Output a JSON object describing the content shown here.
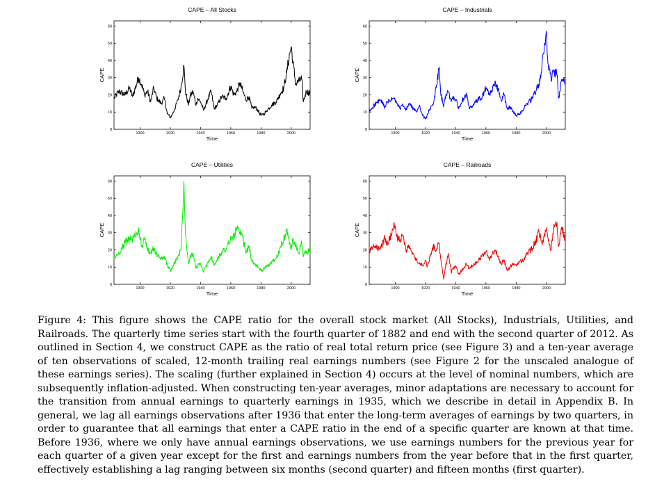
{
  "figure": {
    "caption": "Figure 4: This figure shows the CAPE ratio for the overall stock market (All Stocks), Industrials, Utilities, and Railroads. The quarterly time series start with the fourth quarter of 1882 and end with the second quarter of 2012. As outlined in Section 4, we construct CAPE as the ratio of real total return price (see Figure 3) and a ten-year average of ten observations of scaled, 12-month trailing real earnings numbers (see Figure 2 for the unscaled analogue of these earnings series). The scaling (further explained in Section 4) occurs at the level of nominal numbers, which are subsequently inflation-adjusted. When constructing ten-year averages, minor adaptations are necessary to account for the transition from annual earnings to quarterly earnings in 1935, which we describe in detail in Appendix B. In general, we lag all earnings observations after 1936 that enter the long-term averages of earnings by two quarters, in order to guarantee that all earnings that enter a CAPE ratio in the end of a specific quarter are known at that time. Before 1936, where we only have annual earnings observations, we use earnings numbers for the previous year for each quarter of a given year except for the first and earnings numbers from the year before that in the first quarter, effectively establishing a lag ranging between six months (second quarter) and fifteen months (first quarter)."
  },
  "chart_data": [
    {
      "type": "line",
      "title": "CAPE – All Stocks",
      "xlabel": "Time",
      "ylabel": "CAPE",
      "color": "#000000",
      "xlim": [
        1882.75,
        2012.5
      ],
      "ylim": [
        0,
        63
      ],
      "xticks": [
        "1900",
        "1920",
        "1940",
        "1960",
        "1980",
        "2000"
      ],
      "yticks": [
        "0",
        "10",
        "20",
        "30",
        "40",
        "50",
        "60"
      ],
      "x": [
        1882.75,
        1886,
        1890,
        1893,
        1895,
        1899,
        1901,
        1903,
        1905,
        1907,
        1909,
        1911,
        1914,
        1916,
        1918,
        1920,
        1921,
        1923,
        1925,
        1927,
        1929,
        1930,
        1932,
        1933,
        1935,
        1937,
        1938,
        1940,
        1942,
        1945,
        1947,
        1949,
        1951,
        1954,
        1957,
        1960,
        1962,
        1964,
        1966,
        1968,
        1970,
        1972,
        1974,
        1976,
        1978,
        1980,
        1982,
        1985,
        1987,
        1990,
        1993,
        1995,
        1997,
        1999,
        2000,
        2001,
        2003,
        2005,
        2007,
        2008,
        2009,
        2010,
        2012.5
      ],
      "values": [
        18,
        22,
        20,
        24,
        19,
        30,
        26,
        20,
        22,
        16,
        24,
        18,
        15,
        18,
        9,
        7,
        8,
        12,
        17,
        24,
        37,
        22,
        14,
        19,
        22,
        14,
        18,
        16,
        11,
        18,
        22,
        12,
        14,
        19,
        18,
        25,
        20,
        22,
        27,
        22,
        17,
        19,
        12,
        13,
        11,
        8,
        9,
        12,
        14,
        16,
        21,
        24,
        33,
        44,
        48,
        40,
        26,
        28,
        29,
        16,
        19,
        22,
        21
      ]
    },
    {
      "type": "line",
      "title": "CAPE – Industrials",
      "xlabel": "Time",
      "ylabel": "CAPE",
      "color": "#0000ff",
      "xlim": [
        1882.75,
        2012.5
      ],
      "ylim": [
        0,
        63
      ],
      "xticks": [
        "1900",
        "1920",
        "1940",
        "1960",
        "1980",
        "2000"
      ],
      "yticks": [
        "0",
        "10",
        "20",
        "30",
        "40",
        "50",
        "60"
      ],
      "x": [
        1882.75,
        1886,
        1890,
        1893,
        1895,
        1899,
        1901,
        1903,
        1905,
        1907,
        1909,
        1911,
        1914,
        1916,
        1918,
        1920,
        1921,
        1923,
        1925,
        1927,
        1929,
        1930,
        1932,
        1933,
        1935,
        1937,
        1938,
        1940,
        1942,
        1945,
        1947,
        1949,
        1951,
        1954,
        1957,
        1960,
        1962,
        1964,
        1966,
        1968,
        1970,
        1972,
        1974,
        1976,
        1978,
        1980,
        1982,
        1985,
        1987,
        1990,
        1993,
        1995,
        1997,
        1999,
        2000,
        2001,
        2003,
        2005,
        2007,
        2008,
        2009,
        2010,
        2012.5
      ],
      "values": [
        10,
        14,
        17,
        13,
        16,
        18,
        15,
        12,
        14,
        11,
        15,
        13,
        10,
        14,
        8,
        6,
        8,
        12,
        14,
        24,
        36,
        21,
        13,
        19,
        22,
        16,
        19,
        17,
        12,
        18,
        21,
        12,
        13,
        17,
        18,
        24,
        20,
        22,
        28,
        23,
        17,
        20,
        12,
        13,
        10,
        8,
        9,
        12,
        15,
        17,
        22,
        26,
        36,
        50,
        57,
        38,
        30,
        33,
        32,
        18,
        22,
        29,
        28
      ]
    },
    {
      "type": "line",
      "title": "CAPE – Utilities",
      "xlabel": "Time",
      "ylabel": "CAPE",
      "color": "#00ee00",
      "xlim": [
        1882.75,
        2012.5
      ],
      "ylim": [
        0,
        63
      ],
      "xticks": [
        "1900",
        "1920",
        "1940",
        "1960",
        "1980",
        "2000"
      ],
      "yticks": [
        "0",
        "10",
        "20",
        "30",
        "40",
        "50",
        "60"
      ],
      "x": [
        1882.75,
        1886,
        1890,
        1893,
        1895,
        1899,
        1901,
        1903,
        1905,
        1907,
        1909,
        1911,
        1914,
        1916,
        1918,
        1920,
        1921,
        1923,
        1925,
        1927,
        1929,
        1930,
        1932,
        1933,
        1935,
        1937,
        1938,
        1940,
        1942,
        1945,
        1947,
        1949,
        1951,
        1954,
        1957,
        1960,
        1962,
        1964,
        1966,
        1968,
        1970,
        1972,
        1974,
        1976,
        1978,
        1980,
        1982,
        1985,
        1987,
        1990,
        1993,
        1995,
        1997,
        1999,
        2000,
        2001,
        2003,
        2005,
        2007,
        2008,
        2009,
        2010,
        2012.5
      ],
      "values": [
        15,
        18,
        24,
        27,
        26,
        32,
        22,
        26,
        20,
        18,
        21,
        17,
        15,
        16,
        11,
        8,
        9,
        13,
        16,
        20,
        60,
        30,
        12,
        16,
        18,
        9,
        11,
        12,
        7,
        13,
        16,
        11,
        14,
        19,
        21,
        26,
        28,
        33,
        29,
        27,
        18,
        22,
        13,
        12,
        10,
        8,
        9,
        11,
        13,
        15,
        22,
        26,
        31,
        24,
        20,
        26,
        22,
        18,
        24,
        16,
        19,
        18,
        20
      ]
    },
    {
      "type": "line",
      "title": "CAPE – Railroads",
      "xlabel": "Time",
      "ylabel": "CAPE",
      "color": "#ee0000",
      "xlim": [
        1882.75,
        2012.5
      ],
      "ylim": [
        0,
        63
      ],
      "xticks": [
        "1900",
        "1920",
        "1940",
        "1960",
        "1980",
        "2000"
      ],
      "yticks": [
        "0",
        "10",
        "20",
        "30",
        "40",
        "50",
        "60"
      ],
      "x": [
        1882.75,
        1886,
        1890,
        1893,
        1895,
        1899,
        1901,
        1903,
        1905,
        1907,
        1909,
        1911,
        1914,
        1916,
        1918,
        1920,
        1921,
        1923,
        1925,
        1927,
        1929,
        1930,
        1932,
        1933,
        1935,
        1937,
        1938,
        1940,
        1942,
        1945,
        1947,
        1949,
        1951,
        1954,
        1957,
        1960,
        1962,
        1964,
        1966,
        1968,
        1970,
        1972,
        1974,
        1976,
        1978,
        1980,
        1982,
        1985,
        1987,
        1990,
        1993,
        1995,
        1997,
        1999,
        2000,
        2001,
        2003,
        2005,
        2007,
        2008,
        2009,
        2010,
        2012.5
      ],
      "values": [
        19,
        22,
        20,
        27,
        23,
        35,
        28,
        25,
        28,
        20,
        22,
        18,
        14,
        12,
        11,
        14,
        10,
        16,
        22,
        20,
        24,
        15,
        3,
        9,
        18,
        7,
        9,
        11,
        6,
        9,
        12,
        9,
        11,
        13,
        16,
        19,
        15,
        17,
        20,
        16,
        12,
        14,
        8,
        10,
        12,
        11,
        13,
        14,
        18,
        20,
        25,
        30,
        24,
        28,
        33,
        27,
        20,
        35,
        36,
        22,
        28,
        33,
        26
      ]
    }
  ]
}
